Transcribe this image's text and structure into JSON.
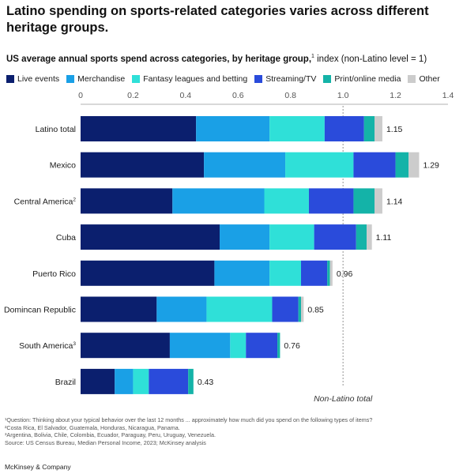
{
  "title": "Latino spending on sports-related categories varies across different heritage groups.",
  "subtitle_bold": "US average annual sports spend across categories, by heritage group,",
  "subtitle_sup": "1",
  "subtitle_rest": " index (non-Latino level = 1)",
  "reference_label": "Non-Latino total",
  "footnotes": [
    "¹Question: Thinking about your typical behavior over the last 12 months ... approximately how much did you spend on the following types of items?",
    "²Costa Rica, El Salvador, Guatemala, Honduras, Nicaragua, Panama.",
    "³Argentina, Bolivia, Chile, Colombia, Ecuador, Paraguay, Peru, Uruguay, Venezuela.",
    " Source: US Census Bureau, Median Personal Income, 2023; McKinsey analysis"
  ],
  "source": "McKinsey & Company",
  "colors": {
    "Live events": "#0b1f6e",
    "Merchandise": "#1aa0e6",
    "Fantasy leagues and betting": "#2fe0d8",
    "Streaming/TV": "#2a4bdb",
    "Print/online media": "#14b3a8",
    "Other": "#cccccc"
  },
  "chart_data": {
    "type": "bar",
    "orientation": "horizontal",
    "stacked": true,
    "categories": [
      {
        "label": "Latino total",
        "sup": ""
      },
      {
        "label": "Mexico",
        "sup": ""
      },
      {
        "label": "Central America",
        "sup": "2"
      },
      {
        "label": "Cuba",
        "sup": ""
      },
      {
        "label": "Puerto Rico",
        "sup": ""
      },
      {
        "label": "Domincan Republic",
        "sup": ""
      },
      {
        "label": "South America",
        "sup": "3"
      },
      {
        "label": "Brazil",
        "sup": ""
      }
    ],
    "series": [
      {
        "name": "Live events",
        "values": [
          0.44,
          0.47,
          0.35,
          0.53,
          0.51,
          0.29,
          0.34,
          0.13
        ]
      },
      {
        "name": "Merchandise",
        "values": [
          0.28,
          0.31,
          0.35,
          0.19,
          0.21,
          0.19,
          0.23,
          0.07
        ]
      },
      {
        "name": "Fantasy leagues and betting",
        "values": [
          0.21,
          0.26,
          0.17,
          0.17,
          0.12,
          0.25,
          0.06,
          0.06
        ]
      },
      {
        "name": "Streaming/TV",
        "values": [
          0.15,
          0.16,
          0.17,
          0.16,
          0.1,
          0.1,
          0.12,
          0.15
        ]
      },
      {
        "name": "Print/online media",
        "values": [
          0.04,
          0.05,
          0.08,
          0.04,
          0.01,
          0.01,
          0.01,
          0.02
        ]
      },
      {
        "name": "Other",
        "values": [
          0.03,
          0.04,
          0.03,
          0.02,
          0.01,
          0.01,
          0.0,
          0.0
        ]
      }
    ],
    "totals": [
      1.15,
      1.29,
      1.14,
      1.11,
      0.96,
      0.85,
      0.76,
      0.43
    ],
    "total_labels": [
      "1.15",
      "1.29",
      "1.14",
      "1.11",
      "0.96",
      "0.85",
      "0.76",
      "0.43"
    ],
    "xlim": [
      0,
      1.4
    ],
    "xticks": [
      0,
      0.2,
      0.4,
      0.6,
      0.8,
      1.0,
      1.2,
      1.4
    ],
    "xtick_labels": [
      "0",
      "0.2",
      "0.4",
      "0.6",
      "0.8",
      "1.0",
      "1.2",
      "1.4"
    ],
    "reference_line": 1.0,
    "legend_position": "top",
    "grid": false
  }
}
